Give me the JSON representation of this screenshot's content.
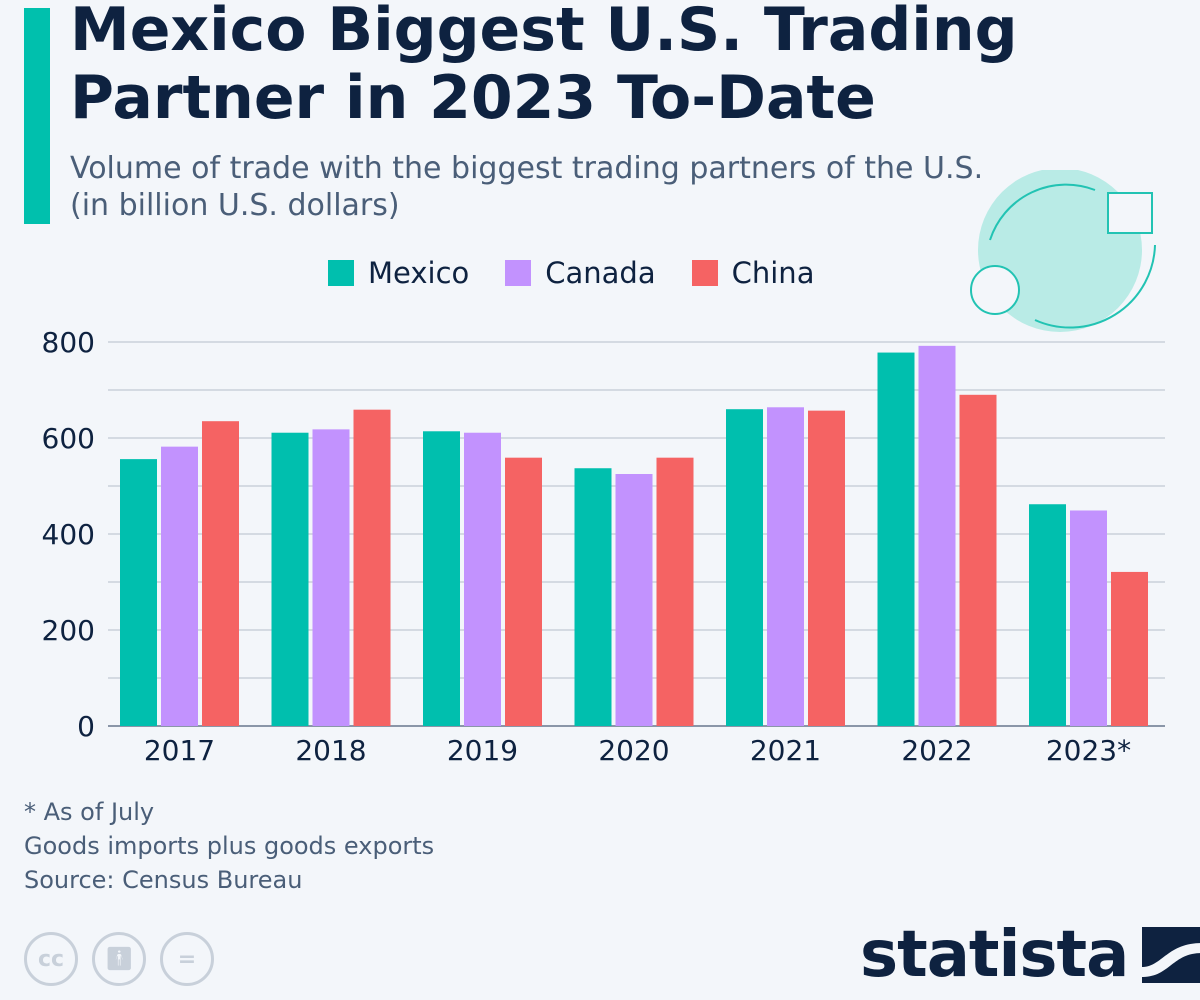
{
  "header": {
    "title": "Mexico Biggest U.S. Trading Partner in 2023 To-Date",
    "subtitle": "Volume of trade with the biggest trading partners of the U.S. (in billion U.S. dollars)"
  },
  "chart_data": {
    "type": "bar",
    "title": "Mexico Biggest U.S. Trading Partner in 2023 To-Date",
    "subtitle": "Volume of trade with the biggest trading partners of the U.S. (in billion U.S. dollars)",
    "categories": [
      "2017",
      "2018",
      "2019",
      "2020",
      "2021",
      "2022",
      "2023*"
    ],
    "series": [
      {
        "name": "Mexico",
        "color": "#00bfae",
        "values": [
          556,
          611,
          614,
          537,
          660,
          778,
          462
        ]
      },
      {
        "name": "Canada",
        "color": "#c292fe",
        "values": [
          582,
          618,
          611,
          525,
          664,
          792,
          449
        ]
      },
      {
        "name": "China",
        "color": "#f56363",
        "values": [
          635,
          659,
          559,
          559,
          657,
          690,
          321
        ]
      }
    ],
    "ylim": [
      0,
      800
    ],
    "yticks": [
      0,
      200,
      400,
      600,
      800
    ],
    "grid": true,
    "legend": "top"
  },
  "notes": [
    "* As of July",
    "Goods imports plus goods exports",
    "Source: Census Bureau"
  ],
  "brand": {
    "logo": "statista",
    "license_icons": [
      "cc-icon",
      "attribution-icon",
      "no-derivatives-icon"
    ]
  }
}
